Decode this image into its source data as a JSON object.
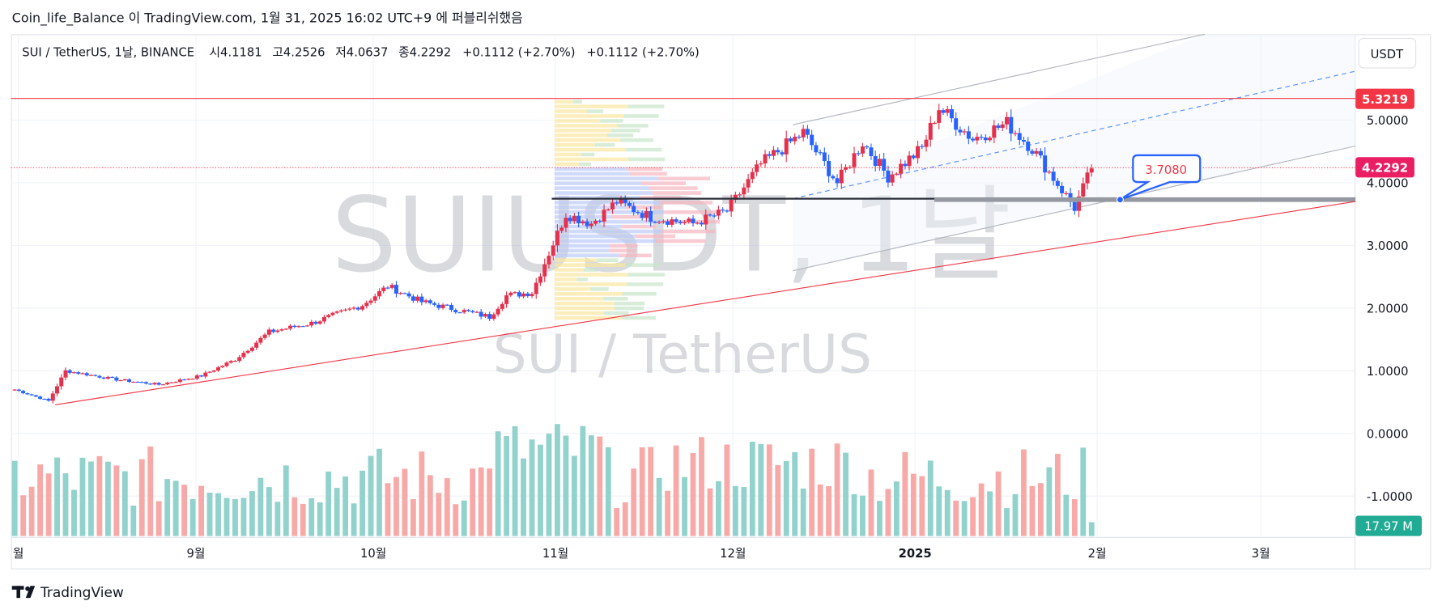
{
  "header": {
    "publish_line": "Coin_life_Balance 이 TradingView.com, 1월 31, 2025 16:02 UTC+9 에 퍼블리쉬했음"
  },
  "legend": {
    "symbol": "SUI / TetherUS, 1날, BINANCE",
    "open_label": "시",
    "open": "4.1181",
    "high_label": "고",
    "high": "4.2526",
    "low_label": "저",
    "low": "4.0637",
    "close_label": "종",
    "close": "4.2292",
    "change": "+0.1112 (+2.70%)",
    "change2": "+0.1112 (+2.70%)"
  },
  "watermark": {
    "main": "SUIUSDT, 1날",
    "sub": "SUI / TetherUS"
  },
  "price_axis": {
    "currency": "USDT",
    "ticks": [
      "5.0000",
      "4.0000",
      "3.0000",
      "2.0000",
      "1.0000",
      "0.0000",
      "-1.0000"
    ],
    "marker_resistance": "5.3219",
    "marker_last": "4.2292",
    "marker_volume": "17.97 M"
  },
  "time_axis": {
    "labels": [
      "월",
      "9월",
      "10월",
      "11월",
      "12월",
      "2025",
      "2월",
      "3월"
    ]
  },
  "annotation": {
    "callout": "3.7080"
  },
  "colors": {
    "up": "#e5314b",
    "down": "#2962ff",
    "vol_up": "#92d2cc",
    "vol_down": "#f7a9a7",
    "resistance": "#f23645",
    "marker_last": "#e91e63",
    "marker_volume": "#22ab94",
    "callout_border": "#2962ff",
    "callout_text": "#f23645"
  },
  "footer": {
    "brand": "TradingView"
  },
  "chart_data": {
    "type": "candlestick",
    "title": "SUI / TetherUS, 1날, BINANCE",
    "x_labels": [
      "월",
      "9월",
      "10월",
      "11월",
      "12월",
      "2025",
      "2월",
      "3월"
    ],
    "y_ticks": [
      5.0,
      4.0,
      3.0,
      2.0,
      1.0,
      0.0,
      -1.0
    ],
    "resistance_level": 5.3219,
    "last_price": 4.2292,
    "support_callout": 3.708,
    "volume_last": "17.97 M",
    "candle_anchors": [
      [
        0,
        0.7
      ],
      [
        8,
        0.52
      ],
      [
        12,
        1.0
      ],
      [
        24,
        0.86
      ],
      [
        34,
        0.78
      ],
      [
        44,
        0.92
      ],
      [
        52,
        1.18
      ],
      [
        60,
        1.62
      ],
      [
        70,
        1.76
      ],
      [
        82,
        2.05
      ],
      [
        88,
        2.35
      ],
      [
        96,
        2.1
      ],
      [
        106,
        1.95
      ],
      [
        112,
        1.86
      ],
      [
        116,
        2.2
      ],
      [
        122,
        2.25
      ],
      [
        130,
        3.5
      ],
      [
        136,
        3.35
      ],
      [
        142,
        3.7
      ],
      [
        150,
        3.45
      ],
      [
        160,
        3.35
      ],
      [
        168,
        3.55
      ],
      [
        176,
        4.3
      ],
      [
        186,
        4.8
      ],
      [
        194,
        4.0
      ],
      [
        200,
        4.65
      ],
      [
        206,
        4.1
      ],
      [
        214,
        4.55
      ],
      [
        218,
        5.2
      ],
      [
        226,
        4.7
      ],
      [
        234,
        4.95
      ],
      [
        240,
        4.55
      ],
      [
        250,
        3.6
      ],
      [
        254,
        4.23
      ]
    ],
    "volume_profile": "relative volume bars 0..1 per candle"
  }
}
